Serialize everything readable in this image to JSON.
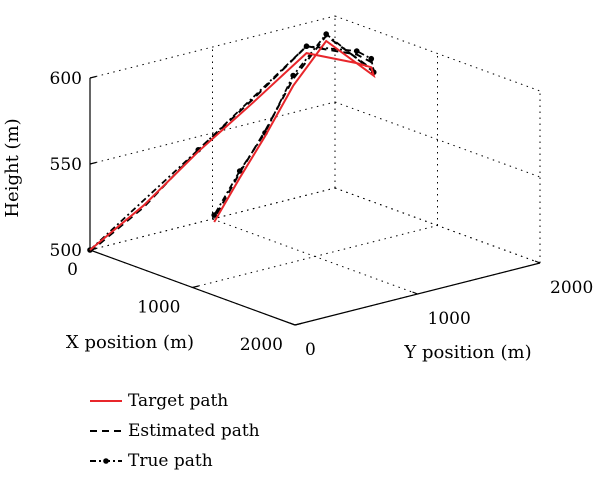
{
  "chart_data": {
    "type": "line",
    "subtype": "3d",
    "xlabel": "X position (m)",
    "ylabel": "Y position (m)",
    "zlabel": "Height (m)",
    "x_ticks": [
      "0",
      "1000",
      "2000"
    ],
    "y_ticks": [
      "0",
      "1000",
      "2000"
    ],
    "z_ticks": [
      "500",
      "550",
      "600"
    ],
    "xlim": [
      0,
      2000
    ],
    "ylim": [
      0,
      2000
    ],
    "zlim": [
      500,
      600
    ],
    "grid": true,
    "legend_position": "bottom-left",
    "colors": {
      "target": "#e8262b",
      "estimated": "#000000",
      "true": "#000000"
    },
    "series": [
      {
        "name": "Target path",
        "style": "solid",
        "x": [
          0,
          50,
          100,
          150,
          200,
          260,
          330,
          390,
          440,
          500,
          560,
          600,
          650
        ],
        "y": [
          0,
          400,
          800,
          1200,
          1600,
          1960,
          2020,
          1990,
          1560,
          1240,
          960,
          720,
          470
        ],
        "z": [
          500,
          520,
          545,
          567,
          590,
          579,
          577,
          574,
          603,
          584,
          561,
          542,
          522
        ]
      },
      {
        "name": "Estimated path",
        "style": "dashed",
        "x": [
          0,
          50,
          100,
          150,
          200,
          260,
          330,
          390,
          440,
          500,
          560,
          600,
          650
        ],
        "y": [
          0,
          400,
          800,
          1200,
          1600,
          1960,
          2020,
          1990,
          1560,
          1240,
          960,
          720,
          470
        ],
        "z": [
          499,
          519,
          546,
          569,
          594,
          584,
          580,
          577,
          606,
          588,
          564,
          545,
          524
        ]
      },
      {
        "name": "True path",
        "style": "dash-dot-marker",
        "x": [
          0,
          100,
          200,
          260,
          330,
          390,
          440,
          500,
          560,
          600,
          650
        ],
        "y": [
          0,
          800,
          1600,
          1960,
          2020,
          1990,
          1560,
          1240,
          960,
          720,
          470
        ],
        "z": [
          500,
          546,
          594,
          586,
          582,
          576,
          607,
          590,
          563,
          546,
          526
        ]
      }
    ]
  }
}
